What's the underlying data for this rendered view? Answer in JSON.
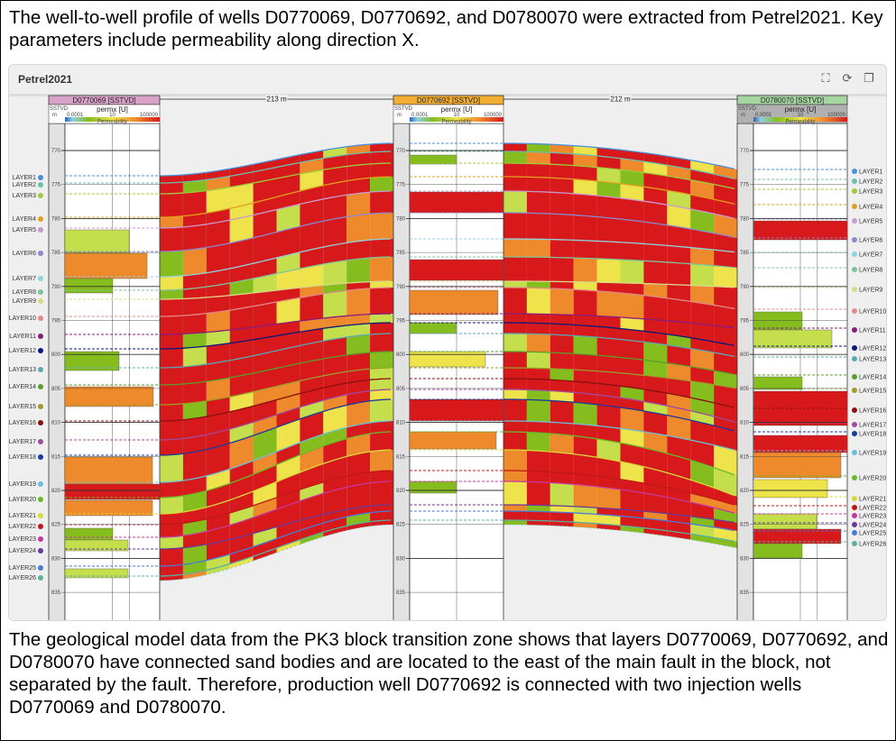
{
  "caption_top": "The well-to-well profile of wells D0770069, D0770692, and D0780070 were extracted from Petrel2021. Key parameters include permeability along direction X.",
  "caption_bottom": "The geological model data from the PK3 block transition zone shows that layers D0770069, D0770692, and D0780070 have connected sand bodies and are located to the east of the main fault in the block, not separated by the fault. Therefore, production well D0770692 is connected with two injection wells D0770069 and D0780070.",
  "panel": {
    "title": "Petrel2021",
    "toolbar": [
      "fullscreen-icon",
      "refresh-icon",
      "copy-icon"
    ]
  },
  "wells": [
    {
      "name": "D0770069 [SSTVD]",
      "color": "#d9a3c9",
      "log": "permx [U]",
      "depth_label": "SSTVD",
      "unit": "m"
    },
    {
      "name": "D0770692 [SSTVD]",
      "color": "#f2ae33",
      "log": "permx [U]",
      "depth_label": "SSTVD",
      "unit": "m"
    },
    {
      "name": "D0780070 [SSTVD]",
      "color": "#a6d6a0",
      "log": "permx [U]",
      "depth_label": "SSTVD",
      "unit": "m"
    }
  ],
  "distances": [
    "213 m",
    "212 m"
  ],
  "scale": {
    "min": "0.0001",
    "mid": "10",
    "max": "100000",
    "caption": "Permeability"
  },
  "depth_ticks": [
    "770",
    "775",
    "780",
    "785",
    "790",
    "795",
    "800",
    "805",
    "810",
    "815",
    "820",
    "825",
    "830",
    "835"
  ],
  "layers": [
    "LAYER1",
    "LAYER2",
    "LAYER3",
    "LAYER4",
    "LAYER5",
    "LAYER6",
    "LAYER7",
    "LAYER8",
    "LAYER9",
    "LAYER10",
    "LAYER11",
    "LAYER12",
    "LAYER13",
    "LAYER14",
    "LAYER15",
    "LAYER16",
    "LAYER17",
    "LAYER18",
    "LAYER19",
    "LAYER20",
    "LAYER21",
    "LAYER22",
    "LAYER23",
    "LAYER24",
    "LAYER25",
    "LAYER26"
  ],
  "layer_colors": [
    "#4a90d9",
    "#6bbfae",
    "#9ccc3a",
    "#e0a020",
    "#c99ad0",
    "#8a88d0",
    "#8fd3df",
    "#7cc49a",
    "#d9d98a",
    "#e08a8a",
    "#8a1c7c",
    "#0b1a7a",
    "#5aa9b5",
    "#5a9e2a",
    "#9c9c2a",
    "#8a1010",
    "#a04aa0",
    "#1a3a9a",
    "#6ac0d8",
    "#6ab82a",
    "#d8d83a",
    "#c01818",
    "#c8389c",
    "#6a3a9a",
    "#4a7ad8",
    "#5ab0a0"
  ],
  "perm_palette": {
    "red": "#d7191c",
    "orange": "#ef8a2c",
    "yellow": "#eee34a",
    "lightgreen": "#c4de4c",
    "green": "#86bd1e"
  }
}
